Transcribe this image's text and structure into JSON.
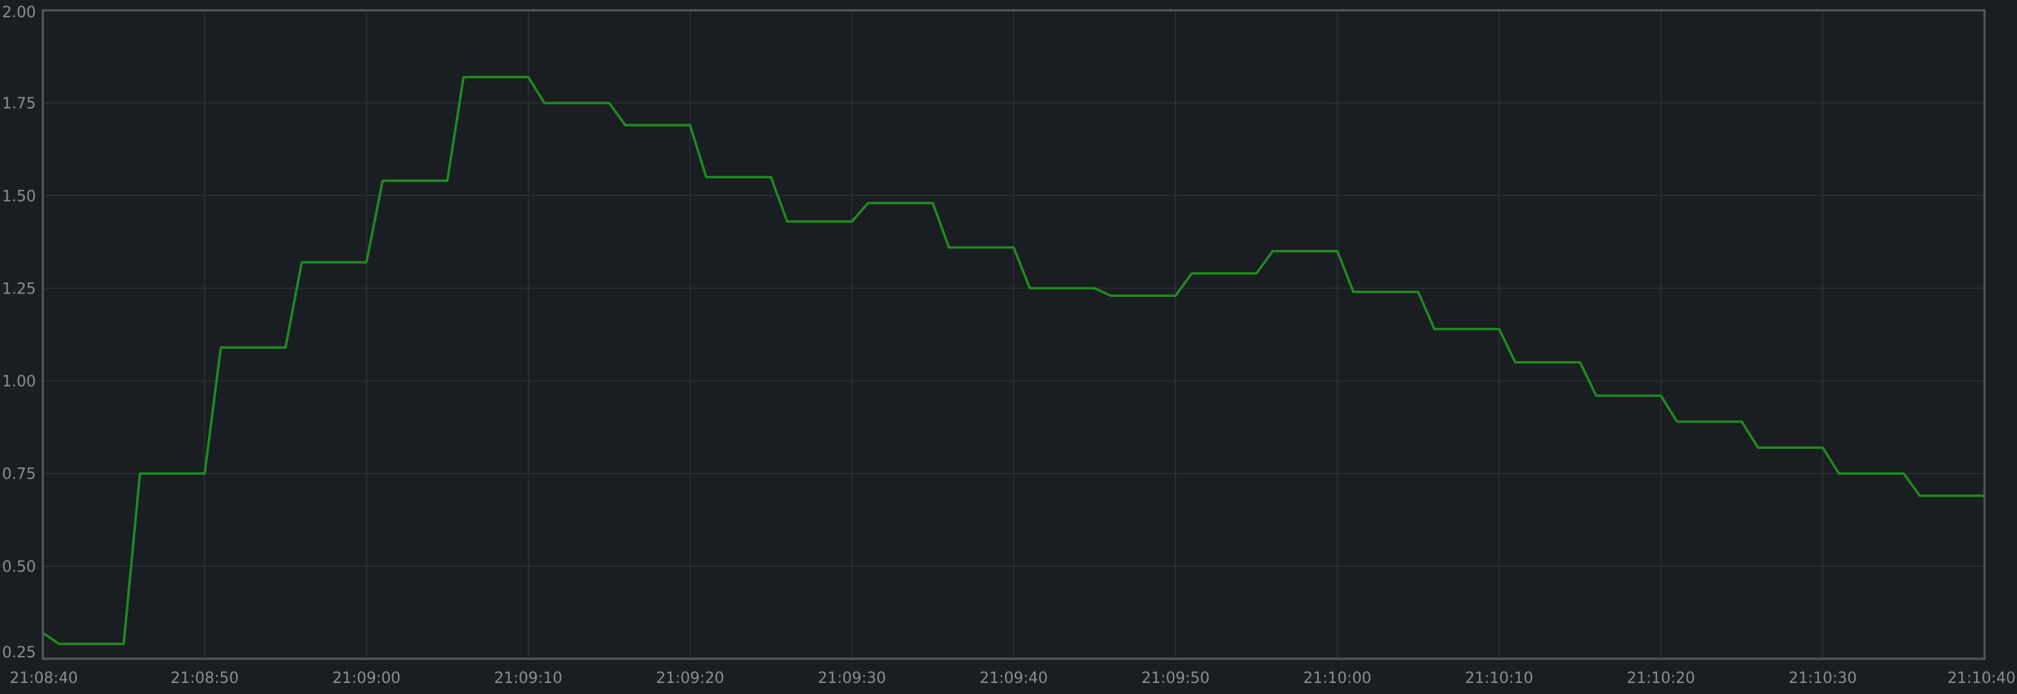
{
  "chart_data": {
    "type": "line",
    "title": "",
    "xlabel": "",
    "ylabel": "",
    "xlim": [
      "21:08:40",
      "21:10:40"
    ],
    "ylim": [
      0.25,
      2.0
    ],
    "grid": true,
    "x_ticks": [
      "21:08:40",
      "21:08:50",
      "21:09:00",
      "21:09:10",
      "21:09:20",
      "21:09:30",
      "21:09:40",
      "21:09:50",
      "21:10:00",
      "21:10:10",
      "21:10:20",
      "21:10:30",
      "21:10:40"
    ],
    "y_ticks": [
      "0.25",
      "0.50",
      "0.75",
      "1.00",
      "1.25",
      "1.50",
      "1.75",
      "2.00"
    ],
    "series": [
      {
        "color": "#1e8c1e",
        "points": [
          [
            "21:08:40",
            0.32
          ],
          [
            "21:08:41",
            0.29
          ],
          [
            "21:08:45",
            0.29
          ],
          [
            "21:08:46",
            0.75
          ],
          [
            "21:08:50",
            0.75
          ],
          [
            "21:08:51",
            1.09
          ],
          [
            "21:08:55",
            1.09
          ],
          [
            "21:08:56",
            1.32
          ],
          [
            "21:09:00",
            1.32
          ],
          [
            "21:09:01",
            1.54
          ],
          [
            "21:09:05",
            1.54
          ],
          [
            "21:09:06",
            1.82
          ],
          [
            "21:09:10",
            1.82
          ],
          [
            "21:09:11",
            1.75
          ],
          [
            "21:09:15",
            1.75
          ],
          [
            "21:09:16",
            1.69
          ],
          [
            "21:09:20",
            1.69
          ],
          [
            "21:09:21",
            1.55
          ],
          [
            "21:09:25",
            1.55
          ],
          [
            "21:09:26",
            1.43
          ],
          [
            "21:09:30",
            1.43
          ],
          [
            "21:09:31",
            1.48
          ],
          [
            "21:09:35",
            1.48
          ],
          [
            "21:09:36",
            1.36
          ],
          [
            "21:09:40",
            1.36
          ],
          [
            "21:09:41",
            1.25
          ],
          [
            "21:09:45",
            1.25
          ],
          [
            "21:09:46",
            1.23
          ],
          [
            "21:09:50",
            1.23
          ],
          [
            "21:09:51",
            1.29
          ],
          [
            "21:09:55",
            1.29
          ],
          [
            "21:09:56",
            1.35
          ],
          [
            "21:10:00",
            1.35
          ],
          [
            "21:10:01",
            1.24
          ],
          [
            "21:10:05",
            1.24
          ],
          [
            "21:10:06",
            1.14
          ],
          [
            "21:10:10",
            1.14
          ],
          [
            "21:10:11",
            1.05
          ],
          [
            "21:10:15",
            1.05
          ],
          [
            "21:10:16",
            0.96
          ],
          [
            "21:10:20",
            0.96
          ],
          [
            "21:10:21",
            0.89
          ],
          [
            "21:10:25",
            0.89
          ],
          [
            "21:10:26",
            0.82
          ],
          [
            "21:10:30",
            0.82
          ],
          [
            "21:10:31",
            0.75
          ],
          [
            "21:10:35",
            0.75
          ],
          [
            "21:10:36",
            0.69
          ],
          [
            "21:10:40",
            0.69
          ]
        ]
      }
    ]
  },
  "style": {
    "background": "#1a1d21",
    "grid_color": "#2c2f34",
    "frame_color": "#55585d",
    "tick_label_color": "#8b8e93"
  }
}
